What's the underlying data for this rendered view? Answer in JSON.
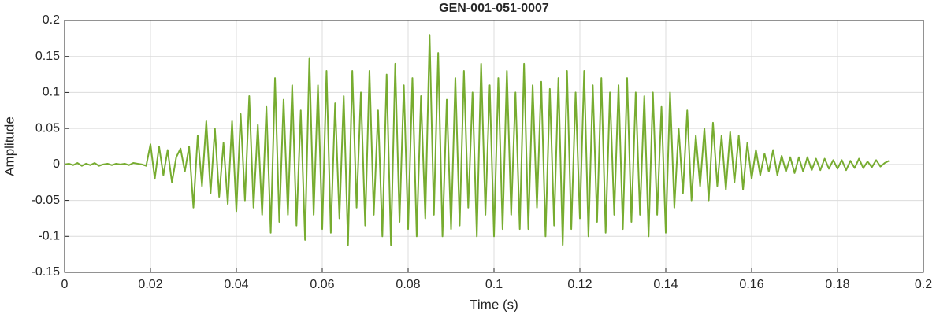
{
  "chart_data": {
    "type": "line",
    "title": "GEN-001-051-0007",
    "x_label": "Time (s)",
    "y_label": "Amplitude",
    "xlim": [
      0,
      0.2
    ],
    "ylim": [
      -0.15,
      0.2
    ],
    "xticks": [
      0,
      0.02,
      0.04,
      0.06,
      0.08,
      0.1,
      0.12,
      0.14,
      0.16,
      0.18,
      0.2
    ],
    "yticks": [
      -0.15,
      -0.1,
      -0.05,
      0,
      0.05,
      0.1,
      0.15,
      0.2
    ],
    "grid": true,
    "x": [
      0,
      0.001,
      0.002,
      0.003,
      0.004,
      0.005,
      0.006,
      0.007,
      0.008,
      0.009,
      0.01,
      0.011,
      0.012,
      0.013,
      0.014,
      0.015,
      0.016,
      0.017,
      0.018,
      0.019,
      0.02,
      0.021,
      0.022,
      0.023,
      0.024,
      0.025,
      0.026,
      0.027,
      0.028,
      0.029,
      0.03,
      0.031,
      0.032,
      0.033,
      0.034,
      0.035,
      0.036,
      0.037,
      0.038,
      0.039,
      0.04,
      0.041,
      0.042,
      0.043,
      0.044,
      0.045,
      0.046,
      0.047,
      0.048,
      0.049,
      0.05,
      0.051,
      0.052,
      0.053,
      0.054,
      0.055,
      0.056,
      0.057,
      0.058,
      0.059,
      0.06,
      0.061,
      0.062,
      0.063,
      0.064,
      0.065,
      0.066,
      0.067,
      0.068,
      0.069,
      0.07,
      0.071,
      0.072,
      0.073,
      0.074,
      0.075,
      0.076,
      0.077,
      0.078,
      0.079,
      0.08,
      0.081,
      0.082,
      0.083,
      0.084,
      0.085,
      0.086,
      0.087,
      0.088,
      0.089,
      0.09,
      0.091,
      0.092,
      0.093,
      0.094,
      0.095,
      0.096,
      0.097,
      0.098,
      0.099,
      0.1,
      0.101,
      0.102,
      0.103,
      0.104,
      0.105,
      0.106,
      0.107,
      0.108,
      0.109,
      0.11,
      0.111,
      0.112,
      0.113,
      0.114,
      0.115,
      0.116,
      0.117,
      0.118,
      0.119,
      0.12,
      0.121,
      0.122,
      0.123,
      0.124,
      0.125,
      0.126,
      0.127,
      0.128,
      0.129,
      0.13,
      0.131,
      0.132,
      0.133,
      0.134,
      0.135,
      0.136,
      0.137,
      0.138,
      0.139,
      0.14,
      0.141,
      0.142,
      0.143,
      0.144,
      0.145,
      0.146,
      0.147,
      0.148,
      0.149,
      0.15,
      0.151,
      0.152,
      0.153,
      0.154,
      0.155,
      0.156,
      0.157,
      0.158,
      0.159,
      0.16,
      0.161,
      0.162,
      0.163,
      0.164,
      0.165,
      0.166,
      0.167,
      0.168,
      0.169,
      0.17,
      0.171,
      0.172,
      0.173,
      0.174,
      0.175,
      0.176,
      0.177,
      0.178,
      0.179,
      0.18,
      0.181,
      0.182,
      0.183,
      0.184,
      0.185,
      0.186,
      0.187,
      0.188,
      0.189,
      0.19,
      0.191,
      0.192
    ],
    "series": [
      {
        "color": "#77ac30",
        "values": [
          0,
          0.001,
          -0.001,
          0.002,
          -0.002,
          0.001,
          -0.001,
          0.002,
          -0.002,
          0,
          0.001,
          -0.001,
          0.001,
          0,
          0.001,
          -0.001,
          0.002,
          0.001,
          0,
          -0.002,
          0.028,
          -0.02,
          0.025,
          -0.015,
          0.02,
          -0.025,
          0.01,
          0.022,
          -0.01,
          0.025,
          -0.06,
          0.04,
          -0.03,
          0.06,
          -0.04,
          0.05,
          -0.045,
          0.03,
          -0.055,
          0.06,
          -0.065,
          0.07,
          -0.05,
          0.095,
          -0.06,
          0.055,
          -0.07,
          0.08,
          -0.095,
          0.12,
          -0.08,
          0.09,
          -0.07,
          0.11,
          -0.085,
          0.075,
          -0.105,
          0.147,
          -0.07,
          0.11,
          -0.09,
          0.13,
          -0.095,
          0.085,
          -0.075,
          0.095,
          -0.112,
          0.13,
          -0.06,
          0.1,
          -0.085,
          0.13,
          -0.07,
          0.075,
          -0.1,
          0.125,
          -0.112,
          0.14,
          -0.08,
          0.11,
          -0.09,
          0.12,
          -0.1,
          0.095,
          -0.075,
          0.18,
          -0.07,
          0.155,
          -0.1,
          0.09,
          -0.09,
          0.12,
          -0.085,
          0.13,
          -0.06,
          0.1,
          -0.1,
          0.14,
          -0.07,
          0.11,
          -0.1,
          0.12,
          -0.09,
          0.13,
          -0.07,
          0.1,
          -0.09,
          0.14,
          -0.09,
          0.11,
          -0.06,
          0.115,
          -0.1,
          0.105,
          -0.085,
          0.12,
          -0.112,
          0.13,
          -0.09,
          0.1,
          -0.075,
          0.13,
          -0.1,
          0.11,
          -0.08,
          0.12,
          -0.095,
          0.1,
          -0.07,
          0.11,
          -0.09,
          0.12,
          -0.08,
          0.1,
          -0.07,
          0.095,
          -0.1,
          0.1,
          -0.07,
          0.08,
          -0.095,
          0.1,
          -0.06,
          0.05,
          -0.04,
          0.075,
          -0.05,
          0.04,
          -0.03,
          0.05,
          -0.05,
          0.058,
          -0.03,
          0.04,
          -0.035,
          0.045,
          -0.025,
          0.04,
          -0.035,
          0.03,
          -0.02,
          0.02,
          -0.015,
          0.015,
          -0.01,
          0.02,
          -0.015,
          0.012,
          -0.01,
          0.01,
          -0.012,
          0.01,
          -0.01,
          0.01,
          -0.008,
          0.008,
          -0.008,
          0.008,
          -0.006,
          0.006,
          -0.006,
          0.006,
          -0.008,
          0.005,
          -0.005,
          0.008,
          -0.005,
          0.004,
          -0.004,
          0.006,
          -0.003,
          0.002,
          0.005
        ]
      }
    ]
  }
}
